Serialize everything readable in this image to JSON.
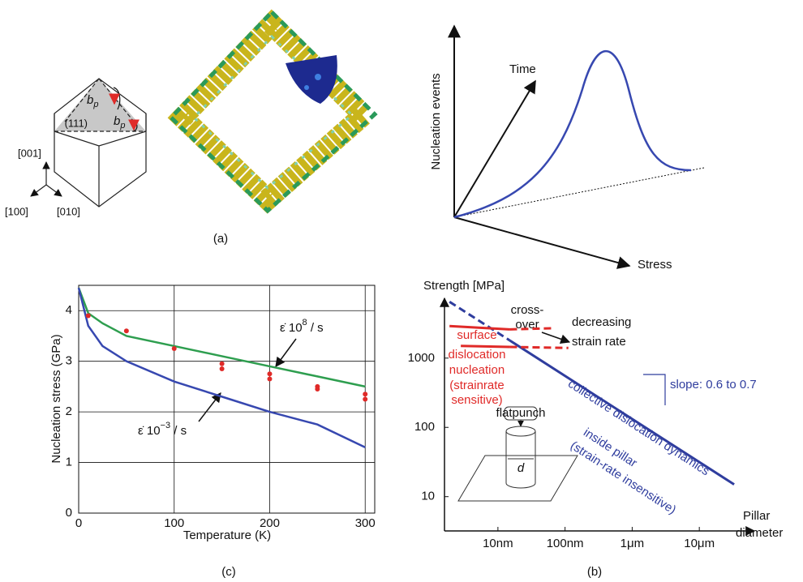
{
  "figure": {
    "panel_labels": [
      "(a)",
      "(b)",
      "(c)"
    ],
    "crystal": {
      "directions": [
        "[001]",
        "[100]",
        "[010]"
      ],
      "plane": "(111)",
      "burgers": {
        "symbol": "b",
        "subscript": "p"
      }
    },
    "schematic": {
      "y_label": "Nucleation events",
      "time_label": "Time",
      "x_label": "Stress"
    }
  },
  "chart_data": [
    {
      "type": "line",
      "y_label": "Nucleation stress (GPa)",
      "x_label": "Temperature (K)",
      "xlim": [
        0,
        310
      ],
      "ylim": [
        0,
        4.5
      ],
      "xticks": [
        0,
        100,
        200,
        300
      ],
      "yticks": [
        0,
        1,
        2,
        3,
        4
      ],
      "grid": true,
      "x": [
        0,
        10,
        25,
        50,
        100,
        150,
        200,
        250,
        300
      ],
      "series": [
        {
          "color": "#2e9e4f",
          "values": [
            4.45,
            3.95,
            3.75,
            3.5,
            3.3,
            3.1,
            2.9,
            2.7,
            2.5
          ]
        },
        {
          "color": "#3748b0",
          "values": [
            4.45,
            3.7,
            3.3,
            3.0,
            2.6,
            2.3,
            2.0,
            1.75,
            1.3
          ]
        }
      ],
      "points": {
        "color": "#e02a28",
        "x": [
          10,
          50,
          100,
          150,
          150,
          200,
          200,
          250,
          250,
          300,
          300
        ],
        "values": [
          3.9,
          3.6,
          3.25,
          2.95,
          2.85,
          2.75,
          2.65,
          2.5,
          2.45,
          2.35,
          2.25
        ]
      },
      "annotations": [
        {
          "base": "ε̇ 10",
          "exp": "8",
          "unit": " / s"
        },
        {
          "base": "ε̇ 10",
          "exp": "−3",
          "unit": " / s"
        }
      ]
    },
    {
      "type": "line",
      "log": true,
      "y_label": "Strength [MPa]",
      "x_label": [
        "Pillar",
        "diameter"
      ],
      "xlim": [
        1.6,
        66000
      ],
      "ylim": [
        3.2,
        7300
      ],
      "xticks": [
        {
          "value": 10,
          "label": "10nm"
        },
        {
          "value": 100,
          "label": "100nm"
        },
        {
          "value": 1000,
          "label": "1μm"
        },
        {
          "value": 10000,
          "label": "10μm"
        }
      ],
      "yticks": [
        10,
        100,
        1000
      ],
      "series": [
        {
          "color": "#2f3d9e",
          "dash": false,
          "x": [
            15,
            33000
          ],
          "values": [
            1800,
            15
          ]
        },
        {
          "color": "#2f3d9e",
          "dash": true,
          "x": [
            1.9,
            15
          ],
          "values": [
            6500,
            1800
          ]
        },
        {
          "color": "#e02a28",
          "dash": false,
          "x": [
            1.9,
            15
          ],
          "values": [
            2900,
            2600
          ]
        },
        {
          "color": "#e02a28",
          "dash": true,
          "x": [
            15,
            64
          ],
          "values": [
            2600,
            2700
          ]
        },
        {
          "color": "#e02a28",
          "dash": false,
          "x": [
            2.8,
            15
          ],
          "values": [
            1500,
            1450
          ]
        },
        {
          "color": "#e02a28",
          "dash": true,
          "x": [
            15,
            112
          ],
          "values": [
            1450,
            1400
          ]
        }
      ],
      "annotations": {
        "crossover": [
          "cross-",
          "over"
        ],
        "rate": [
          "decreasing",
          "strain rate"
        ],
        "surface": [
          "surface",
          "dislocation",
          "nucleation",
          "(strainrate",
          "sensitive)"
        ],
        "collective": [
          "collective dislocation dynamics",
          "inside pillar",
          "(strain-rate insensitive)"
        ],
        "slope": "slope: 0.6 to 0.7",
        "punch": "flatpunch",
        "diameter": "d"
      }
    }
  ]
}
